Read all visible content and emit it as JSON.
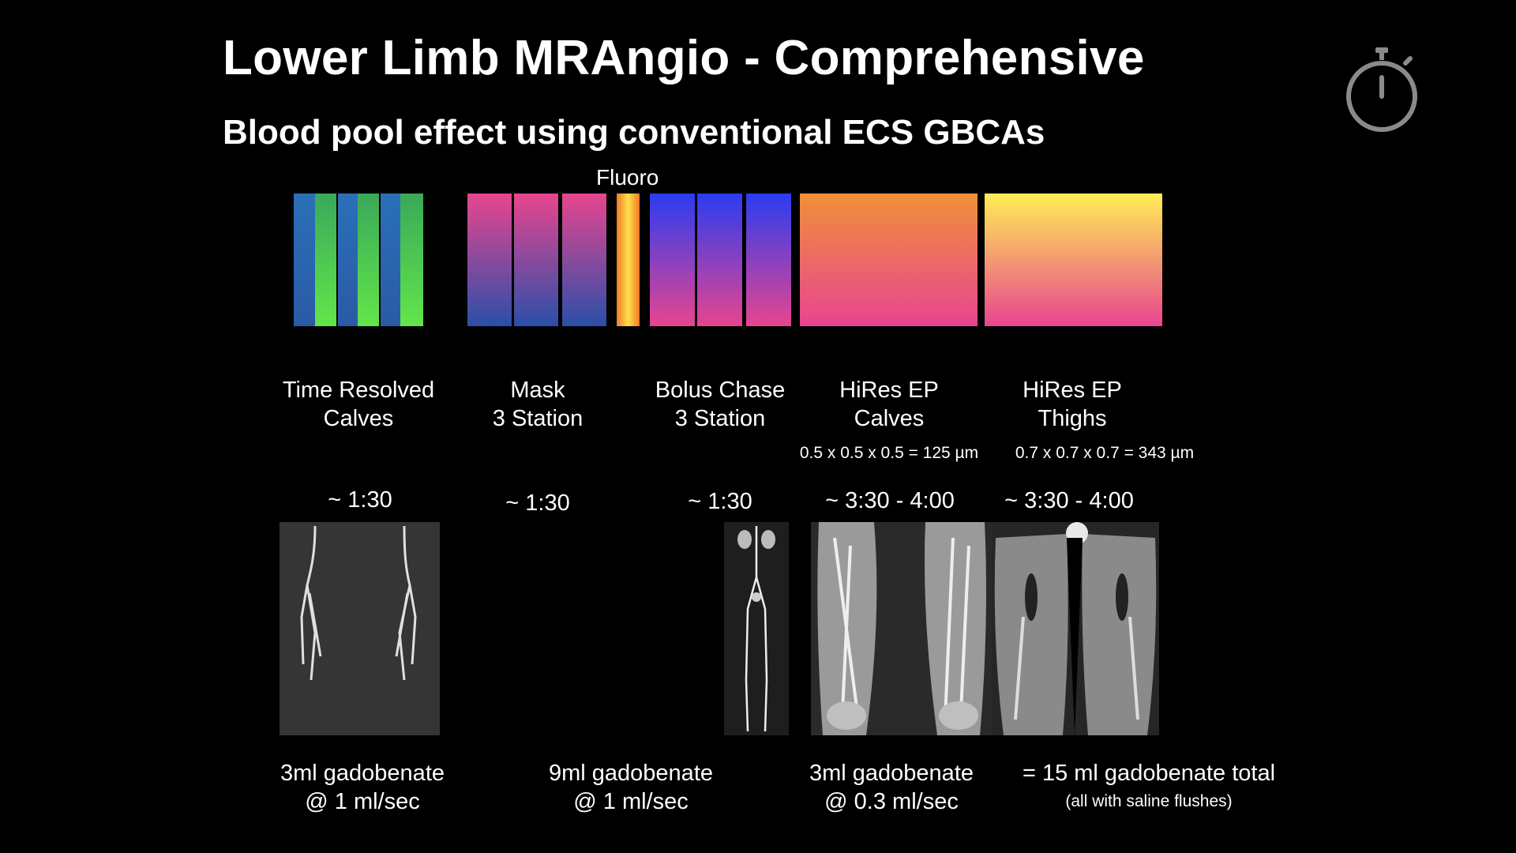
{
  "title": "Lower Limb MRAngio - Comprehensive",
  "subtitle": "Blood pool effect using conventional ECS GBCAs",
  "fluoro_label": "Fluoro",
  "stopwatch_icon": "stopwatch-icon",
  "phases": [
    {
      "line1": "Time Resolved",
      "line2": "Calves",
      "time": "~ 1:30"
    },
    {
      "line1": "Mask",
      "line2": "3 Station",
      "time": "~ 1:30"
    },
    {
      "line1": "Bolus Chase",
      "line2": "3 Station",
      "time": "~ 1:30"
    },
    {
      "line1": "HiRes EP",
      "line2": "Calves",
      "resolution": "0.5 x 0.5 x 0.5 = 125 µm",
      "time": "~ 3:30 - 4:00"
    },
    {
      "line1": "HiRes EP",
      "line2": "Thighs",
      "resolution": "0.7 x 0.7 x 0.7 = 343 µm",
      "time": "~ 3:30 - 4:00"
    }
  ],
  "doses": [
    {
      "line1": "3ml gadobenate",
      "line2": "@ 1 ml/sec"
    },
    {
      "line1": "9ml gadobenate",
      "line2": "@ 1 ml/sec"
    },
    {
      "line1": "3ml gadobenate",
      "line2": "@ 0.3 ml/sec"
    },
    {
      "line1": "= 15 ml gadobenate total",
      "note": "(all with saline flushes)"
    }
  ],
  "colors": {
    "background": "#000000",
    "time_resolved_blue": "#2e6bb0",
    "time_resolved_green": "#5fe04a",
    "mask_pink": "#e8458f",
    "mask_blue": "#2a4fa8",
    "fluoro_yellow": "#ffe14a",
    "bolus_blue": "#2a3cf0",
    "hires_orange": "#f0903a",
    "hires_yellow": "#ffee55"
  }
}
